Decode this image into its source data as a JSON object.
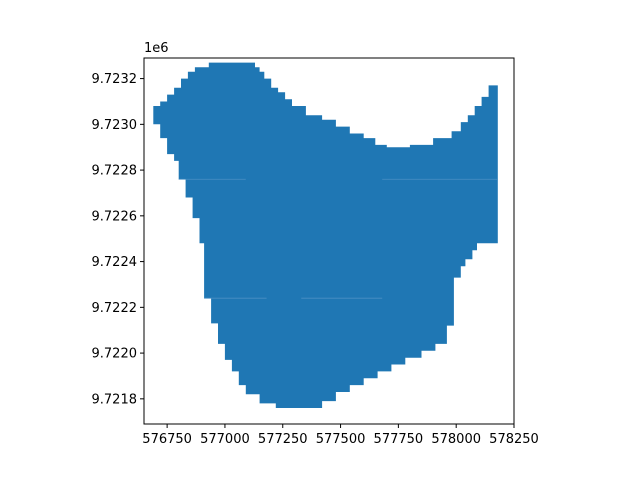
{
  "chart_data": {
    "type": "area",
    "title": "",
    "xlabel": "",
    "ylabel": "",
    "xlim": [
      576650,
      578250
    ],
    "ylim": [
      9721690,
      9723290
    ],
    "y_offset_text": "1e6",
    "grid": false,
    "legend": "none",
    "fill_color": "#1f77b4",
    "x_ticks": [
      {
        "value": 576750,
        "label": "576750"
      },
      {
        "value": 577000,
        "label": "577000"
      },
      {
        "value": 577250,
        "label": "577250"
      },
      {
        "value": 577500,
        "label": "577500"
      },
      {
        "value": 577750,
        "label": "577750"
      },
      {
        "value": 578000,
        "label": "578000"
      },
      {
        "value": 578250,
        "label": "578250"
      }
    ],
    "y_ticks": [
      {
        "value": 9721800,
        "label": "9.7218"
      },
      {
        "value": 9722000,
        "label": "9.7220"
      },
      {
        "value": 9722200,
        "label": "9.7222"
      },
      {
        "value": 9722400,
        "label": "9.7224"
      },
      {
        "value": 9722600,
        "label": "9.7226"
      },
      {
        "value": 9722800,
        "label": "9.7228"
      },
      {
        "value": 9723000,
        "label": "9.7230"
      },
      {
        "value": 9723200,
        "label": "9.7232"
      }
    ],
    "polygon": [
      [
        576690,
        9723080
      ],
      [
        576690,
        9723000
      ],
      [
        576720,
        9723000
      ],
      [
        576720,
        9722940
      ],
      [
        576750,
        9722940
      ],
      [
        576750,
        9722870
      ],
      [
        576780,
        9722870
      ],
      [
        576780,
        9722840
      ],
      [
        576800,
        9722840
      ],
      [
        576800,
        9722760
      ],
      [
        576830,
        9722760
      ],
      [
        576830,
        9722680
      ],
      [
        576860,
        9722680
      ],
      [
        576860,
        9722590
      ],
      [
        576890,
        9722590
      ],
      [
        576890,
        9722480
      ],
      [
        576910,
        9722480
      ],
      [
        576910,
        9722240
      ],
      [
        576940,
        9722240
      ],
      [
        576940,
        9722130
      ],
      [
        576970,
        9722130
      ],
      [
        576970,
        9722040
      ],
      [
        577000,
        9722040
      ],
      [
        577000,
        9721970
      ],
      [
        577030,
        9721970
      ],
      [
        577030,
        9721920
      ],
      [
        577060,
        9721920
      ],
      [
        577060,
        9721860
      ],
      [
        577090,
        9721860
      ],
      [
        577090,
        9721820
      ],
      [
        577150,
        9721820
      ],
      [
        577150,
        9721780
      ],
      [
        577220,
        9721780
      ],
      [
        577220,
        9721760
      ],
      [
        577420,
        9721760
      ],
      [
        577420,
        9721790
      ],
      [
        577480,
        9721790
      ],
      [
        577480,
        9721830
      ],
      [
        577540,
        9721830
      ],
      [
        577540,
        9721860
      ],
      [
        577600,
        9721860
      ],
      [
        577600,
        9721890
      ],
      [
        577660,
        9721890
      ],
      [
        577660,
        9721920
      ],
      [
        577720,
        9721920
      ],
      [
        577720,
        9721950
      ],
      [
        577780,
        9721950
      ],
      [
        577780,
        9721980
      ],
      [
        577850,
        9721980
      ],
      [
        577850,
        9722010
      ],
      [
        577910,
        9722010
      ],
      [
        577910,
        9722040
      ],
      [
        577960,
        9722040
      ],
      [
        577960,
        9722120
      ],
      [
        577990,
        9722120
      ],
      [
        577990,
        9722330
      ],
      [
        578020,
        9722330
      ],
      [
        578020,
        9722380
      ],
      [
        578040,
        9722380
      ],
      [
        578040,
        9722410
      ],
      [
        578070,
        9722410
      ],
      [
        578070,
        9722450
      ],
      [
        578090,
        9722450
      ],
      [
        578090,
        9722480
      ],
      [
        578180,
        9722480
      ],
      [
        578180,
        9723170
      ],
      [
        578140,
        9723170
      ],
      [
        578140,
        9723120
      ],
      [
        578110,
        9723120
      ],
      [
        578110,
        9723080
      ],
      [
        578080,
        9723080
      ],
      [
        578080,
        9723040
      ],
      [
        578050,
        9723040
      ],
      [
        578050,
        9723010
      ],
      [
        578020,
        9723010
      ],
      [
        578020,
        9722970
      ],
      [
        577980,
        9722970
      ],
      [
        577980,
        9722940
      ],
      [
        577900,
        9722940
      ],
      [
        577900,
        9722910
      ],
      [
        577800,
        9722910
      ],
      [
        577800,
        9722900
      ],
      [
        577700,
        9722900
      ],
      [
        577700,
        9722910
      ],
      [
        577650,
        9722910
      ],
      [
        577650,
        9722940
      ],
      [
        577600,
        9722940
      ],
      [
        577600,
        9722960
      ],
      [
        577540,
        9722960
      ],
      [
        577540,
        9722990
      ],
      [
        577480,
        9722990
      ],
      [
        577480,
        9723020
      ],
      [
        577420,
        9723020
      ],
      [
        577420,
        9723040
      ],
      [
        577350,
        9723040
      ],
      [
        577350,
        9723080
      ],
      [
        577290,
        9723080
      ],
      [
        577290,
        9723110
      ],
      [
        577260,
        9723110
      ],
      [
        577260,
        9723140
      ],
      [
        577230,
        9723140
      ],
      [
        577230,
        9723160
      ],
      [
        577200,
        9723160
      ],
      [
        577200,
        9723200
      ],
      [
        577170,
        9723200
      ],
      [
        577170,
        9723230
      ],
      [
        577150,
        9723230
      ],
      [
        577150,
        9723250
      ],
      [
        577130,
        9723250
      ],
      [
        577130,
        9723270
      ],
      [
        576930,
        9723270
      ],
      [
        576930,
        9723250
      ],
      [
        576870,
        9723250
      ],
      [
        576870,
        9723230
      ],
      [
        576840,
        9723230
      ],
      [
        576840,
        9723200
      ],
      [
        576810,
        9723200
      ],
      [
        576810,
        9723160
      ],
      [
        576780,
        9723160
      ],
      [
        576780,
        9723130
      ],
      [
        576750,
        9723130
      ],
      [
        576750,
        9723100
      ],
      [
        576720,
        9723100
      ],
      [
        576720,
        9723080
      ]
    ],
    "seam_lines": [
      {
        "x": [
          576800,
          577090
        ],
        "y": 9722760
      },
      {
        "x": [
          577680,
          578180
        ],
        "y": 9722760
      },
      {
        "x": [
          576910,
          577180
        ],
        "y": 9722240
      },
      {
        "x": [
          577330,
          577680
        ],
        "y": 9722240
      }
    ]
  }
}
